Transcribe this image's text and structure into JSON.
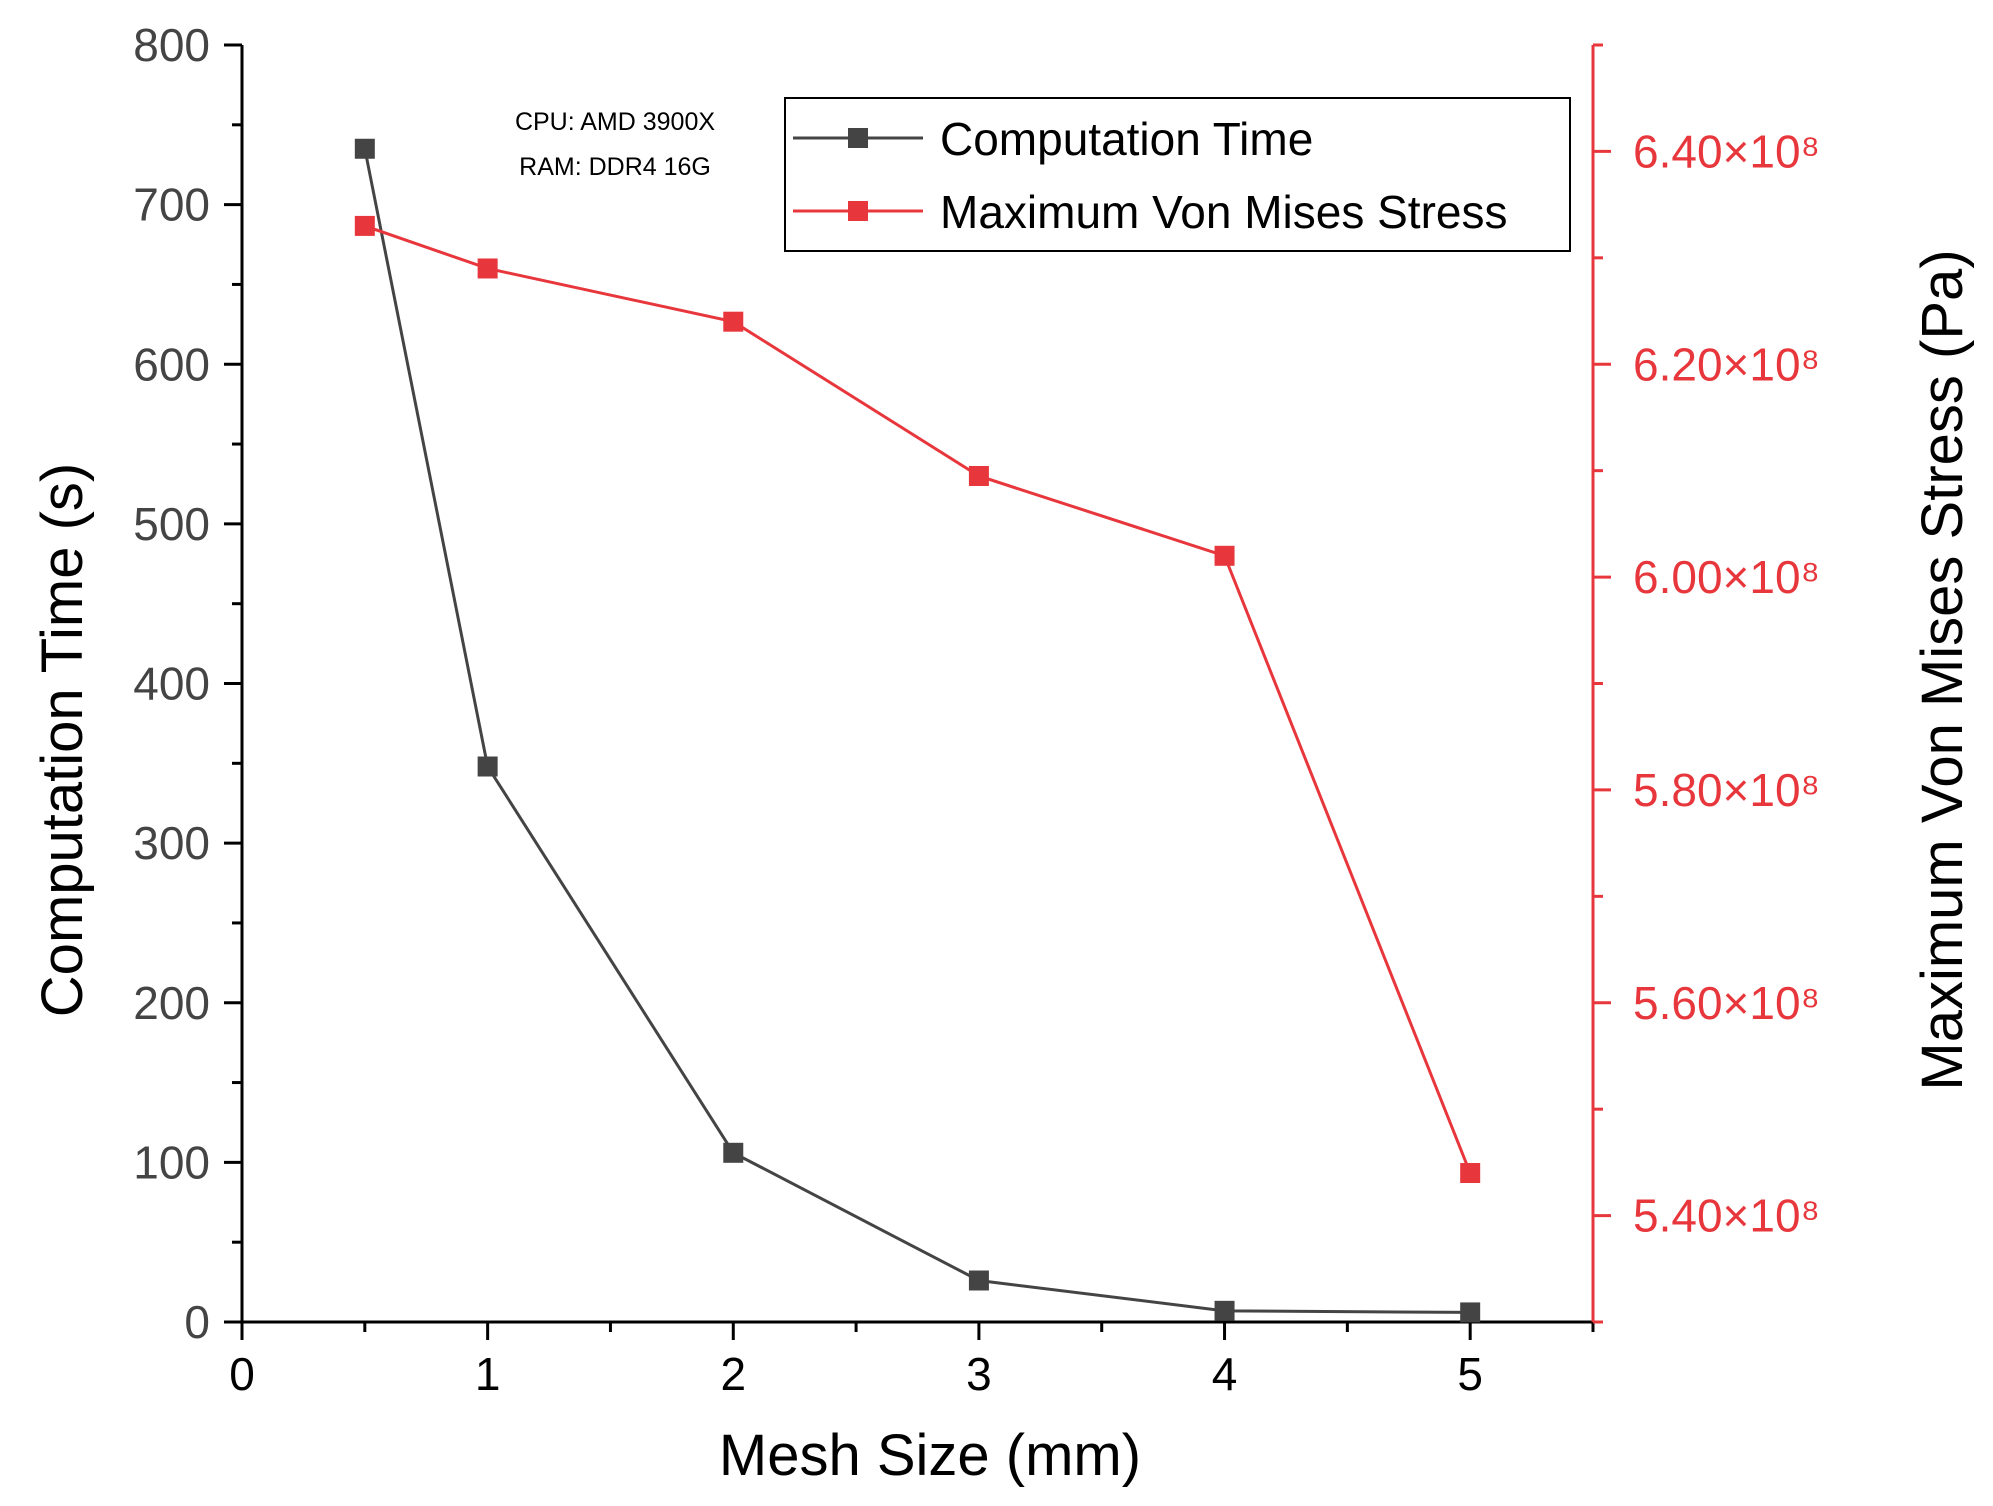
{
  "chart_data": {
    "type": "line",
    "x": [
      0.5,
      1,
      2,
      3,
      4,
      5
    ],
    "xlabel": "Mesh Size (mm)",
    "xlim": [
      0,
      5.5
    ],
    "xticks": [
      0,
      1,
      2,
      3,
      4,
      5
    ],
    "xtick_labels": [
      "0",
      "1",
      "2",
      "3",
      "4",
      "5"
    ],
    "ylabel_left": "Computation Time (s)",
    "ylim_left": [
      0,
      800
    ],
    "yticks_left": [
      0,
      100,
      200,
      300,
      400,
      500,
      600,
      700,
      800
    ],
    "ytick_labels_left": [
      "0",
      "100",
      "200",
      "300",
      "400",
      "500",
      "600",
      "700",
      "800"
    ],
    "ylabel_right": "Maximum Von Mises Stress (Pa)",
    "ylim_right": [
      530000000,
      650000000
    ],
    "yticks_right": [
      540000000,
      560000000,
      580000000,
      600000000,
      620000000,
      640000000
    ],
    "ytick_labels_right": [
      "5.40×10⁸",
      "5.60×10⁸",
      "5.80×10⁸",
      "6.00×10⁸",
      "6.20×10⁸",
      "6.40×10⁸"
    ],
    "series": [
      {
        "name": "Computation Time",
        "axis": "left",
        "color": "#444444",
        "marker": "square",
        "values": [
          735,
          348,
          106,
          26,
          7,
          6
        ]
      },
      {
        "name": "Maximum Von Mises Stress",
        "axis": "right",
        "color": "#E8373C",
        "marker": "square",
        "values": [
          633000000,
          629000000,
          624000000,
          609500000,
          602000000,
          544000000
        ]
      }
    ],
    "legend_position": "top-right",
    "annotations": [
      "CPU: AMD 3900X",
      "RAM: DDR4 16G"
    ],
    "grid": false
  }
}
